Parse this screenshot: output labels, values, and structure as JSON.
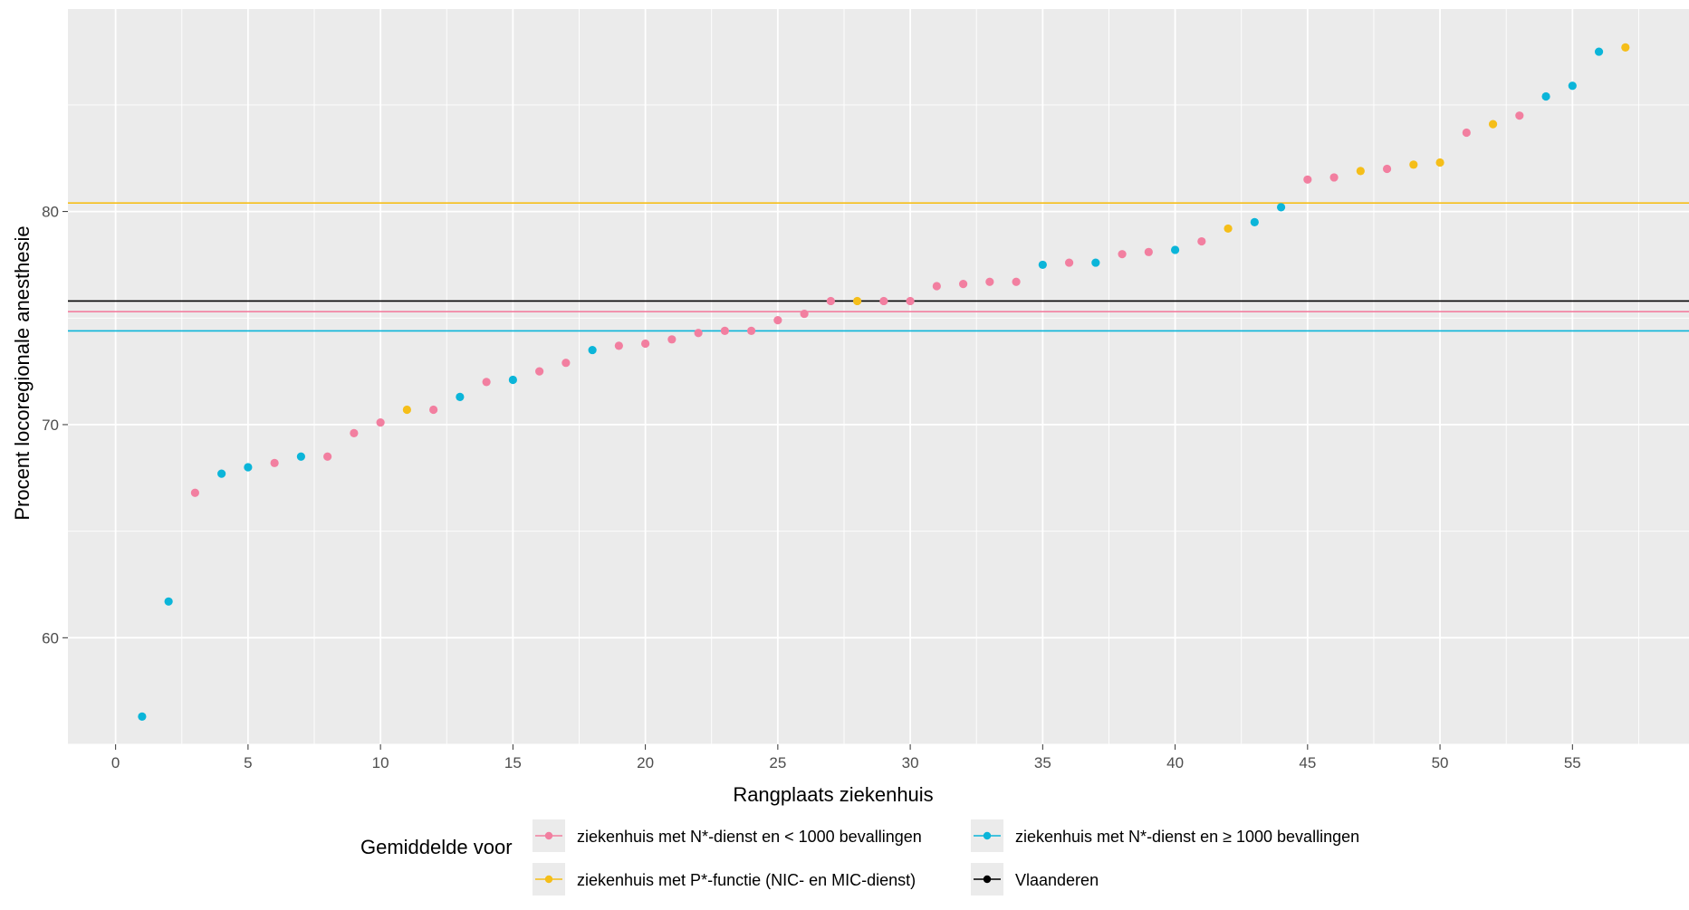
{
  "chart_data": {
    "type": "scatter",
    "xlabel": "Rangplaats ziekenhuis",
    "ylabel": "Procent locoregionale anesthesie",
    "xlim": [
      -1.8,
      59.4
    ],
    "ylim": [
      55.0,
      89.5
    ],
    "x_ticks": [
      0,
      5,
      10,
      15,
      20,
      25,
      30,
      35,
      40,
      45,
      50,
      55
    ],
    "y_ticks": [
      60,
      70,
      80
    ],
    "grid": true,
    "legend_position": "bottom",
    "legend_title": "Gemiddelde voor",
    "categories": [
      {
        "key": "lt1000",
        "label": "ziekenhuis met N*-dienst en < 1000 bevallingen",
        "color": "#F27FA0"
      },
      {
        "key": "ge1000",
        "label": "ziekenhuis met N*-dienst en ≥ 1000 bevallingen",
        "color": "#0BB5D9"
      },
      {
        "key": "p",
        "label": "ziekenhuis met P*-functie (NIC- en MIC-dienst)",
        "color": "#F5BE19"
      },
      {
        "key": "vl",
        "label": "Vlaanderen",
        "color": "#000000"
      }
    ],
    "hlines": [
      {
        "category": "p",
        "y": 80.4
      },
      {
        "category": "vl",
        "y": 75.8
      },
      {
        "category": "lt1000",
        "y": 75.3
      },
      {
        "category": "ge1000",
        "y": 74.4
      }
    ],
    "points": [
      {
        "x": 1,
        "y": 56.3,
        "category": "ge1000"
      },
      {
        "x": 2,
        "y": 61.7,
        "category": "ge1000"
      },
      {
        "x": 3,
        "y": 66.8,
        "category": "lt1000"
      },
      {
        "x": 4,
        "y": 67.7,
        "category": "ge1000"
      },
      {
        "x": 5,
        "y": 68.0,
        "category": "ge1000"
      },
      {
        "x": 6,
        "y": 68.2,
        "category": "lt1000"
      },
      {
        "x": 7,
        "y": 68.5,
        "category": "ge1000"
      },
      {
        "x": 8,
        "y": 68.5,
        "category": "lt1000"
      },
      {
        "x": 9,
        "y": 69.6,
        "category": "lt1000"
      },
      {
        "x": 10,
        "y": 70.1,
        "category": "lt1000"
      },
      {
        "x": 11,
        "y": 70.7,
        "category": "p"
      },
      {
        "x": 12,
        "y": 70.7,
        "category": "lt1000"
      },
      {
        "x": 13,
        "y": 71.3,
        "category": "ge1000"
      },
      {
        "x": 14,
        "y": 72.0,
        "category": "lt1000"
      },
      {
        "x": 15,
        "y": 72.1,
        "category": "ge1000"
      },
      {
        "x": 16,
        "y": 72.5,
        "category": "lt1000"
      },
      {
        "x": 17,
        "y": 72.9,
        "category": "lt1000"
      },
      {
        "x": 18,
        "y": 73.5,
        "category": "ge1000"
      },
      {
        "x": 19,
        "y": 73.7,
        "category": "lt1000"
      },
      {
        "x": 20,
        "y": 73.8,
        "category": "lt1000"
      },
      {
        "x": 21,
        "y": 74.0,
        "category": "lt1000"
      },
      {
        "x": 22,
        "y": 74.3,
        "category": "lt1000"
      },
      {
        "x": 23,
        "y": 74.4,
        "category": "lt1000"
      },
      {
        "x": 24,
        "y": 74.4,
        "category": "lt1000"
      },
      {
        "x": 25,
        "y": 74.9,
        "category": "lt1000"
      },
      {
        "x": 26,
        "y": 75.2,
        "category": "lt1000"
      },
      {
        "x": 27,
        "y": 75.8,
        "category": "lt1000"
      },
      {
        "x": 28,
        "y": 75.8,
        "category": "p"
      },
      {
        "x": 29,
        "y": 75.8,
        "category": "lt1000"
      },
      {
        "x": 30,
        "y": 75.8,
        "category": "lt1000"
      },
      {
        "x": 31,
        "y": 76.5,
        "category": "lt1000"
      },
      {
        "x": 32,
        "y": 76.6,
        "category": "lt1000"
      },
      {
        "x": 33,
        "y": 76.7,
        "category": "lt1000"
      },
      {
        "x": 34,
        "y": 76.7,
        "category": "lt1000"
      },
      {
        "x": 35,
        "y": 77.5,
        "category": "ge1000"
      },
      {
        "x": 36,
        "y": 77.6,
        "category": "lt1000"
      },
      {
        "x": 37,
        "y": 77.6,
        "category": "ge1000"
      },
      {
        "x": 38,
        "y": 78.0,
        "category": "lt1000"
      },
      {
        "x": 39,
        "y": 78.1,
        "category": "lt1000"
      },
      {
        "x": 40,
        "y": 78.2,
        "category": "ge1000"
      },
      {
        "x": 41,
        "y": 78.6,
        "category": "lt1000"
      },
      {
        "x": 42,
        "y": 79.2,
        "category": "p"
      },
      {
        "x": 43,
        "y": 79.5,
        "category": "ge1000"
      },
      {
        "x": 44,
        "y": 80.2,
        "category": "ge1000"
      },
      {
        "x": 45,
        "y": 81.5,
        "category": "lt1000"
      },
      {
        "x": 46,
        "y": 81.6,
        "category": "lt1000"
      },
      {
        "x": 47,
        "y": 81.9,
        "category": "p"
      },
      {
        "x": 48,
        "y": 82.0,
        "category": "lt1000"
      },
      {
        "x": 49,
        "y": 82.2,
        "category": "p"
      },
      {
        "x": 50,
        "y": 82.3,
        "category": "p"
      },
      {
        "x": 51,
        "y": 83.7,
        "category": "lt1000"
      },
      {
        "x": 52,
        "y": 84.1,
        "category": "p"
      },
      {
        "x": 53,
        "y": 84.5,
        "category": "lt1000"
      },
      {
        "x": 54,
        "y": 85.4,
        "category": "ge1000"
      },
      {
        "x": 55,
        "y": 85.9,
        "category": "ge1000"
      },
      {
        "x": 56,
        "y": 87.5,
        "category": "ge1000"
      },
      {
        "x": 57,
        "y": 87.7,
        "category": "p"
      }
    ]
  }
}
